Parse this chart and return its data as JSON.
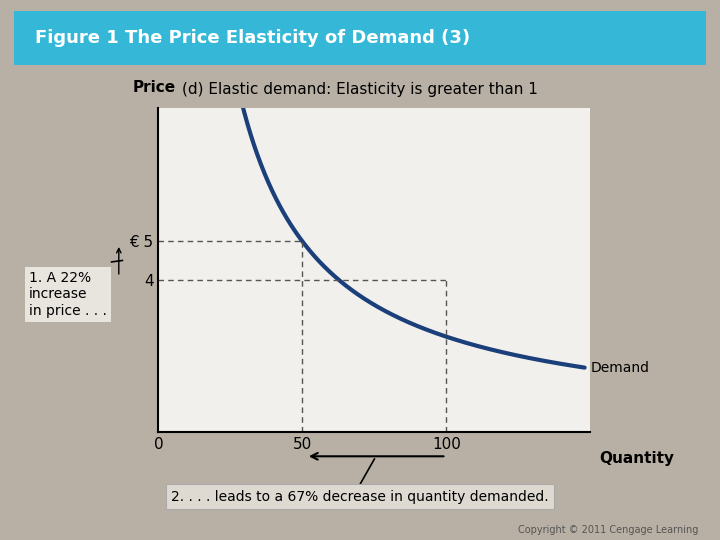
{
  "title": "Figure 1 The Price Elasticity of Demand (3)",
  "subtitle": "(d) Elastic demand: Elasticity is greater than 1",
  "xlabel": "Quantity",
  "ylabel": "Price",
  "background_color": "#b8b0a4",
  "plot_bg_color": "#f2f0ec",
  "header_color": "#35b8d8",
  "curve_color": "#1a3f7a",
  "dashed_color": "#555555",
  "price_ticks": [
    4,
    5
  ],
  "price_labels": [
    "4",
    "€ 5"
  ],
  "qty_ticks": [
    0,
    50,
    100
  ],
  "qty_labels": [
    "0",
    "50",
    "100"
  ],
  "demand_label": "Demand",
  "annotation1": "1. A 22%\nincrease\nin price . . .",
  "annotation2": "2. . . . leads to a 67% decrease in quantity demanded.",
  "copyright": "Copyright © 2011 Cengage Learning",
  "xlim": [
    0,
    150
  ],
  "ylim": [
    0,
    8.5
  ],
  "curve_k": 250,
  "curve_x_start": 15,
  "curve_x_end": 148
}
